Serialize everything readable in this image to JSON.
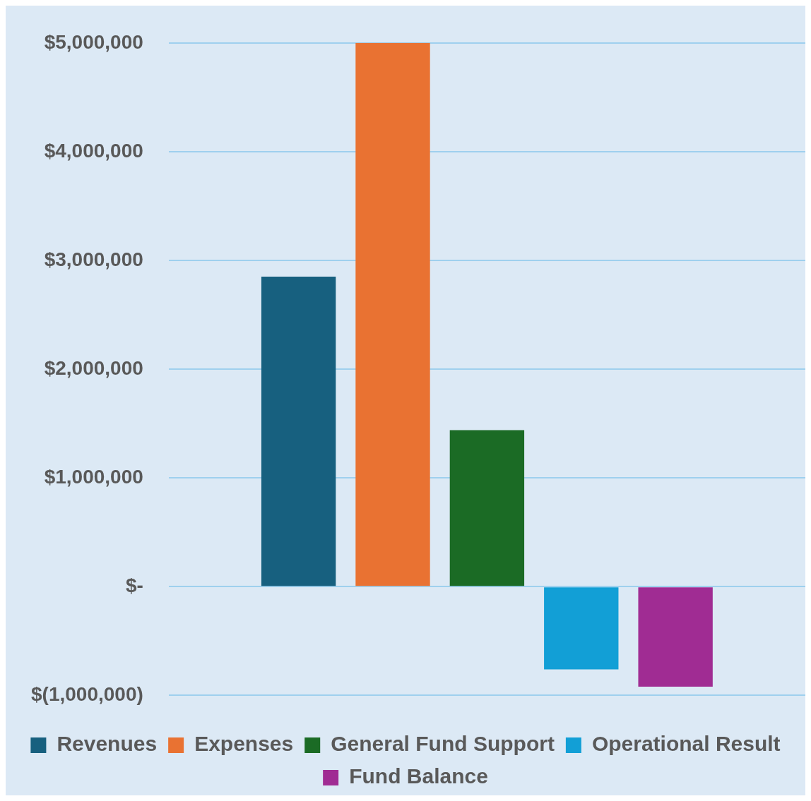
{
  "chart_data": {
    "type": "bar",
    "categories": [
      null
    ],
    "series": [
      {
        "name": "Revenues",
        "color": "#17607f",
        "values": [
          2850000
        ]
      },
      {
        "name": "Expenses",
        "color": "#e97232",
        "values": [
          5000000
        ]
      },
      {
        "name": "General Fund Support",
        "color": "#1b6b25",
        "values": [
          1440000
        ]
      },
      {
        "name": "Operational Result",
        "color": "#129fd6",
        "values": [
          -760000
        ]
      },
      {
        "name": "Fund Balance",
        "color": "#a02c93",
        "values": [
          -920000
        ]
      }
    ],
    "ylim": [
      -1000000,
      5000000
    ],
    "yticks": [
      {
        "value": -1000000,
        "label": "$(1,000,000)"
      },
      {
        "value": 0,
        "label": "$-"
      },
      {
        "value": 1000000,
        "label": "$1,000,000"
      },
      {
        "value": 2000000,
        "label": "$2,000,000"
      },
      {
        "value": 3000000,
        "label": "$3,000,000"
      },
      {
        "value": 4000000,
        "label": "$4,000,000"
      },
      {
        "value": 5000000,
        "label": "$5,000,000"
      }
    ],
    "grid": "y",
    "legend": "bottom"
  }
}
